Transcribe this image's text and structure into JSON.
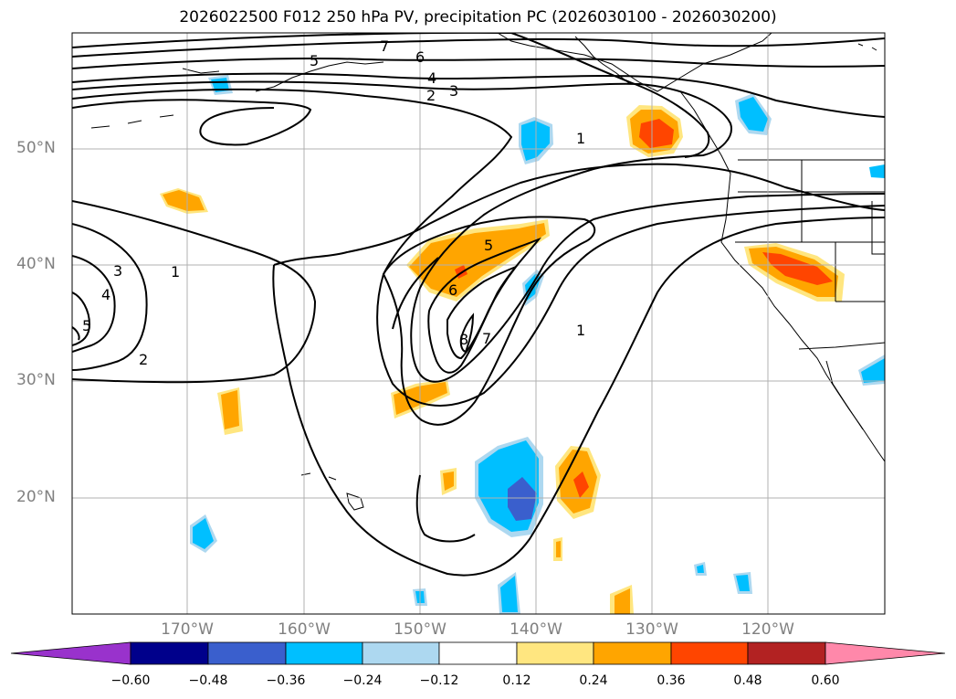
{
  "title": "2026022500 F012 250 hPa PV, precipitation PC (2026030100 - 2026030200)",
  "axes": {
    "lat_labels": [
      "50°N",
      "40°N",
      "30°N",
      "20°N"
    ],
    "lon_labels": [
      "170°W",
      "160°W",
      "150°W",
      "140°W",
      "130°W",
      "120°W"
    ]
  },
  "pv_contour_labels": [
    "1",
    "1",
    "1",
    "2",
    "2",
    "3",
    "3",
    "4",
    "4",
    "5",
    "5",
    "5",
    "6",
    "6",
    "7",
    "7",
    "8"
  ],
  "colorbar": {
    "tick_labels": [
      "−0.60",
      "−0.48",
      "−0.36",
      "−0.24",
      "−0.12",
      "0.12",
      "0.24",
      "0.36",
      "0.48",
      "0.60"
    ],
    "colors": [
      "#9932cc",
      "#00008b",
      "#3a5fcd",
      "#00bfff",
      "#add8f0",
      "#ffffff",
      "#ffe680",
      "#ffa500",
      "#ff4500",
      "#b22222",
      "#ff88aa"
    ]
  }
}
